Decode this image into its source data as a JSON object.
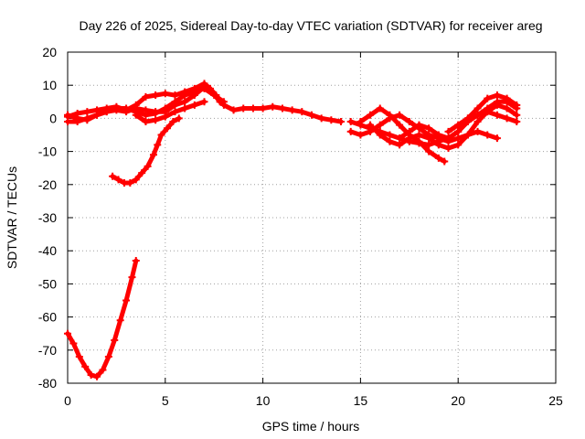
{
  "chart_data": {
    "type": "scatter",
    "title": "Day 226 of 2025, Sidereal Day-to-day VTEC variation (SDTVAR) for receiver areg",
    "xlabel": "GPS time / hours",
    "ylabel": "SDTVAR / TECUs",
    "xlim": [
      0,
      25
    ],
    "ylim": [
      -80,
      20
    ],
    "xticks": [
      0,
      5,
      10,
      15,
      20,
      25
    ],
    "yticks": [
      -80,
      -70,
      -60,
      -50,
      -40,
      -30,
      -20,
      -10,
      0,
      10,
      20
    ],
    "grid": true,
    "legend": "none",
    "series_color": "#ff0000",
    "series": [
      {
        "name": "track-1",
        "points": [
          [
            0,
            -65
          ],
          [
            0.3,
            -68
          ],
          [
            0.6,
            -72
          ],
          [
            0.9,
            -75
          ],
          [
            1.2,
            -77.5
          ],
          [
            1.5,
            -78
          ],
          [
            1.8,
            -76
          ],
          [
            2.1,
            -72
          ],
          [
            2.4,
            -67
          ],
          [
            2.7,
            -61
          ],
          [
            3.0,
            -55
          ],
          [
            3.3,
            -48
          ],
          [
            3.5,
            -43
          ]
        ]
      },
      {
        "name": "track-2",
        "points": [
          [
            2.3,
            -17.5
          ],
          [
            2.6,
            -18.5
          ],
          [
            2.9,
            -19.5
          ],
          [
            3.2,
            -19.5
          ],
          [
            3.5,
            -18.5
          ],
          [
            3.8,
            -16.5
          ],
          [
            4.1,
            -14.5
          ],
          [
            4.4,
            -11
          ],
          [
            4.6,
            -8
          ],
          [
            4.8,
            -5
          ],
          [
            5.1,
            -3
          ],
          [
            5.4,
            -1
          ],
          [
            5.7,
            0
          ]
        ]
      },
      {
        "name": "track-3",
        "points": [
          [
            0,
            0.5
          ],
          [
            0.5,
            1.5
          ],
          [
            1,
            2
          ],
          [
            1.5,
            2.5
          ],
          [
            2,
            3
          ],
          [
            2.5,
            3.5
          ],
          [
            3,
            2.5
          ],
          [
            3.5,
            4
          ],
          [
            4,
            6.5
          ],
          [
            4.5,
            7
          ],
          [
            5,
            7.5
          ],
          [
            5.5,
            7
          ],
          [
            6,
            8
          ],
          [
            6.5,
            9
          ],
          [
            7,
            10.5
          ],
          [
            7.3,
            9
          ],
          [
            7.6,
            7
          ],
          [
            8,
            4
          ],
          [
            8.5,
            2.5
          ],
          [
            9,
            3
          ],
          [
            9.5,
            3
          ],
          [
            10,
            3
          ],
          [
            10.5,
            3.5
          ],
          [
            11,
            3
          ],
          [
            11.5,
            2.5
          ],
          [
            12,
            2
          ],
          [
            12.5,
            1
          ],
          [
            13,
            0
          ],
          [
            13.5,
            -0.5
          ],
          [
            14,
            -1
          ]
        ]
      },
      {
        "name": "track-4",
        "points": [
          [
            0,
            1
          ],
          [
            0.5,
            0
          ],
          [
            1,
            -0.5
          ],
          [
            1.5,
            1
          ],
          [
            2,
            2
          ],
          [
            2.5,
            2.5
          ],
          [
            3,
            2
          ],
          [
            3.5,
            3
          ],
          [
            4,
            2.5
          ],
          [
            4.5,
            2
          ],
          [
            5,
            2
          ],
          [
            5.5,
            4
          ],
          [
            6,
            5
          ],
          [
            6.5,
            7
          ],
          [
            7,
            9.5
          ],
          [
            7.4,
            8
          ],
          [
            7.8,
            5
          ]
        ]
      },
      {
        "name": "track-5",
        "points": [
          [
            0,
            -1
          ],
          [
            0.5,
            -1
          ],
          [
            1,
            0
          ],
          [
            1.5,
            1
          ],
          [
            2,
            2
          ],
          [
            2.5,
            3
          ],
          [
            3,
            3
          ],
          [
            3.5,
            2
          ],
          [
            4,
            1
          ],
          [
            4.5,
            1.5
          ],
          [
            5,
            3
          ],
          [
            5.5,
            5
          ],
          [
            6,
            7
          ],
          [
            6.5,
            8
          ],
          [
            7,
            9
          ],
          [
            7.5,
            7
          ],
          [
            8,
            5
          ]
        ]
      },
      {
        "name": "track-6",
        "points": [
          [
            3.5,
            1
          ],
          [
            4,
            -1
          ],
          [
            4.5,
            -0.5
          ],
          [
            5,
            0.5
          ],
          [
            5.5,
            2
          ],
          [
            6,
            3
          ],
          [
            6.5,
            4
          ],
          [
            7,
            5
          ]
        ]
      },
      {
        "name": "track-7",
        "points": [
          [
            14.5,
            -1
          ],
          [
            15,
            -2
          ],
          [
            15.5,
            -3
          ],
          [
            16,
            -4
          ],
          [
            16.5,
            -5
          ],
          [
            17,
            -6
          ],
          [
            17.5,
            -7
          ],
          [
            18,
            -7.5
          ],
          [
            18.5,
            -8
          ],
          [
            19,
            -7
          ],
          [
            19.5,
            -6
          ],
          [
            20,
            -4
          ],
          [
            20.5,
            -1
          ],
          [
            21,
            1
          ],
          [
            21.5,
            3
          ],
          [
            22,
            5
          ],
          [
            22.5,
            5
          ],
          [
            23,
            3
          ]
        ]
      },
      {
        "name": "track-8",
        "points": [
          [
            14.5,
            -4
          ],
          [
            15,
            -5
          ],
          [
            15.5,
            -4
          ],
          [
            16,
            -2
          ],
          [
            16.5,
            0
          ],
          [
            17,
            1
          ],
          [
            17.5,
            -1
          ],
          [
            18,
            -3
          ],
          [
            18.5,
            -5
          ],
          [
            19,
            -6
          ],
          [
            19.5,
            -7
          ],
          [
            20,
            -6
          ],
          [
            20.5,
            -5
          ],
          [
            21,
            -4
          ],
          [
            21.5,
            -5
          ],
          [
            22,
            -6
          ]
        ]
      },
      {
        "name": "track-9",
        "points": [
          [
            15,
            -1
          ],
          [
            15.5,
            1
          ],
          [
            16,
            3
          ],
          [
            16.5,
            1
          ],
          [
            17,
            -2
          ],
          [
            17.5,
            -5
          ],
          [
            18,
            -7
          ],
          [
            18.5,
            -10
          ],
          [
            19,
            -12
          ],
          [
            19.3,
            -13
          ]
        ]
      },
      {
        "name": "track-10",
        "points": [
          [
            15.5,
            -2
          ],
          [
            16,
            -5
          ],
          [
            16.5,
            -7
          ],
          [
            17,
            -8
          ],
          [
            17.5,
            -6
          ],
          [
            18,
            -5
          ],
          [
            18.5,
            -6
          ],
          [
            19,
            -8
          ],
          [
            19.5,
            -9
          ],
          [
            20,
            -8
          ],
          [
            20.5,
            -5
          ],
          [
            21,
            -1
          ],
          [
            21.5,
            2
          ],
          [
            22,
            4
          ],
          [
            22.5,
            3
          ],
          [
            23,
            1
          ]
        ]
      },
      {
        "name": "track-11",
        "points": [
          [
            17,
            -6
          ],
          [
            17.5,
            -4
          ],
          [
            18,
            -2
          ],
          [
            18.5,
            -3
          ],
          [
            19,
            -5
          ],
          [
            19.5,
            -6
          ],
          [
            20,
            -4
          ],
          [
            20.5,
            0
          ],
          [
            21,
            3
          ],
          [
            21.5,
            6
          ],
          [
            22,
            7
          ],
          [
            22.5,
            6
          ],
          [
            23,
            4
          ]
        ]
      },
      {
        "name": "track-12",
        "points": [
          [
            19.5,
            -4
          ],
          [
            20,
            -2
          ],
          [
            20.5,
            0
          ],
          [
            21,
            1
          ],
          [
            21.5,
            2
          ],
          [
            22,
            1
          ],
          [
            22.5,
            0
          ],
          [
            23,
            -1
          ]
        ]
      }
    ]
  }
}
